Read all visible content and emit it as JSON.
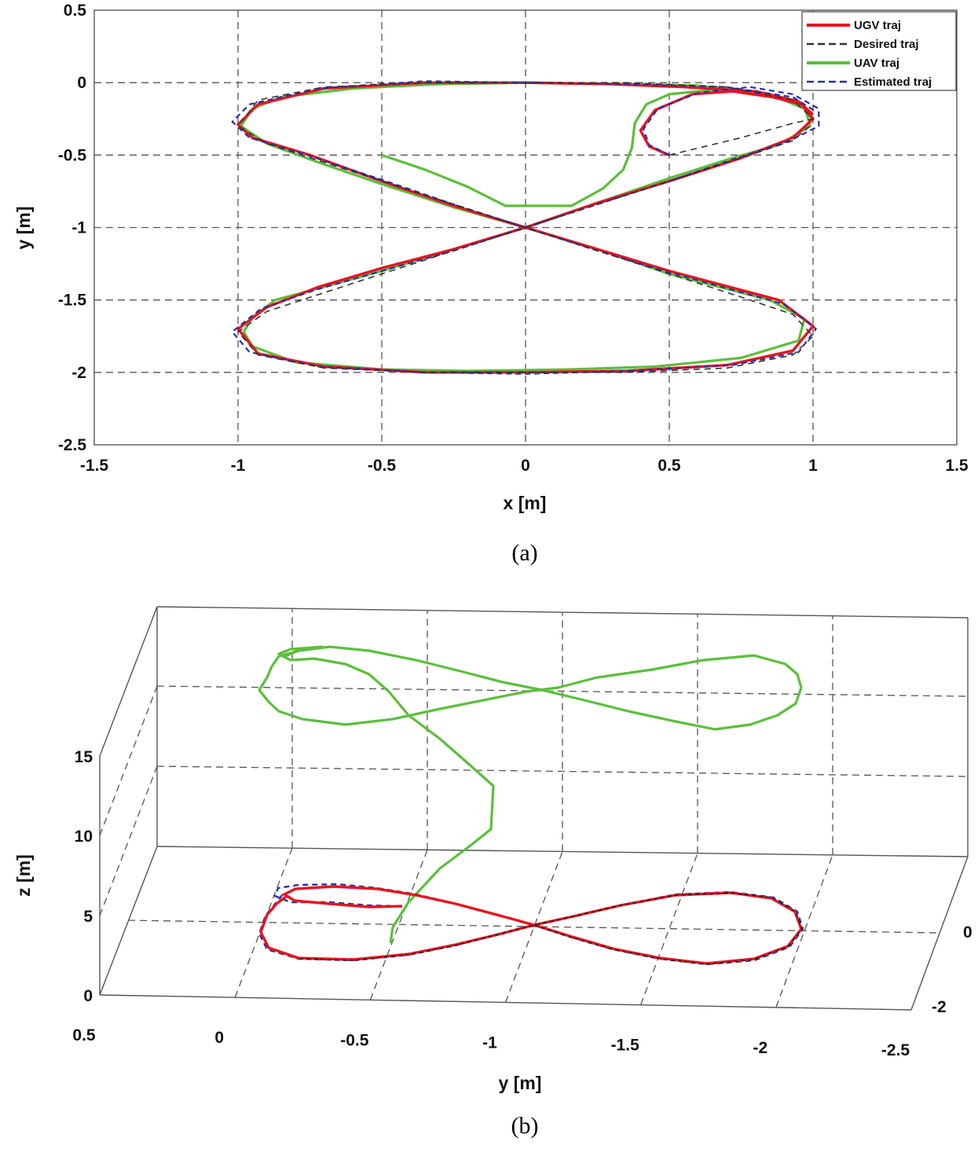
{
  "chart_data": [
    {
      "type": "line",
      "panel_label": "(a)",
      "xlabel": "x [m]",
      "ylabel": "y [m]",
      "xlim": [
        -1.5,
        1.5
      ],
      "ylim": [
        -2.5,
        0.5
      ],
      "xticks": [
        "-1.5",
        "-1",
        "-0.5",
        "0",
        "0.5",
        "1",
        "1.5"
      ],
      "yticks": [
        "0.5",
        "0",
        "-0.5",
        "-1",
        "-1.5",
        "-2",
        "-2.5"
      ],
      "grid": true,
      "legend_position": "top-right",
      "series": [
        {
          "name": "UGV traj",
          "color": "#e8141f",
          "style": "solid",
          "points": [
            [
              0.5,
              -0.5
            ],
            [
              0.43,
              -0.44
            ],
            [
              0.4,
              -0.33
            ],
            [
              0.45,
              -0.19
            ],
            [
              0.58,
              -0.08
            ],
            [
              0.72,
              -0.06
            ],
            [
              0.86,
              -0.1
            ],
            [
              0.96,
              -0.15
            ],
            [
              1.0,
              -0.25
            ],
            [
              0.93,
              -0.38
            ],
            [
              0.75,
              -0.52
            ],
            [
              0.5,
              -0.68
            ],
            [
              0.25,
              -0.83
            ],
            [
              0.0,
              -1.0
            ],
            [
              -0.25,
              -1.15
            ],
            [
              -0.5,
              -1.28
            ],
            [
              -0.72,
              -1.41
            ],
            [
              -0.9,
              -1.55
            ],
            [
              -1.0,
              -1.7
            ],
            [
              -0.93,
              -1.87
            ],
            [
              -0.7,
              -1.96
            ],
            [
              -0.35,
              -2.0
            ],
            [
              0.0,
              -2.0
            ],
            [
              0.35,
              -1.99
            ],
            [
              0.7,
              -1.95
            ],
            [
              0.93,
              -1.85
            ],
            [
              1.0,
              -1.68
            ],
            [
              0.88,
              -1.5
            ],
            [
              0.5,
              -1.3
            ],
            [
              0.25,
              -1.15
            ],
            [
              0.0,
              -1.0
            ],
            [
              -0.25,
              -0.85
            ],
            [
              -0.5,
              -0.68
            ],
            [
              -0.75,
              -0.5
            ],
            [
              -0.95,
              -0.38
            ],
            [
              -1.0,
              -0.29
            ],
            [
              -0.93,
              -0.15
            ],
            [
              -0.7,
              -0.04
            ],
            [
              -0.35,
              0.0
            ],
            [
              0.0,
              0.0
            ],
            [
              0.3,
              -0.01
            ],
            [
              0.55,
              -0.03
            ],
            [
              0.8,
              -0.06
            ],
            [
              0.95,
              -0.13
            ],
            [
              1.0,
              -0.22
            ]
          ]
        },
        {
          "name": "Desired traj",
          "color": "#333333",
          "style": "dashed",
          "points": [
            [
              0.5,
              -0.5
            ],
            [
              0.75,
              -0.38
            ],
            [
              0.93,
              -0.28
            ],
            [
              1.0,
              -0.25
            ],
            [
              0.93,
              -0.12
            ],
            [
              0.7,
              -0.03
            ],
            [
              0.35,
              0.0
            ],
            [
              0.0,
              0.0
            ],
            [
              -0.35,
              0.0
            ],
            [
              -0.7,
              -0.03
            ],
            [
              -0.93,
              -0.12
            ],
            [
              -1.0,
              -0.3
            ],
            [
              -0.9,
              -0.42
            ],
            [
              -0.7,
              -0.55
            ],
            [
              -0.5,
              -0.68
            ],
            [
              -0.25,
              -0.84
            ],
            [
              0.0,
              -1.0
            ],
            [
              0.25,
              -1.16
            ],
            [
              0.5,
              -1.32
            ],
            [
              0.75,
              -1.48
            ],
            [
              0.93,
              -1.6
            ],
            [
              1.0,
              -1.75
            ],
            [
              0.93,
              -1.88
            ],
            [
              0.7,
              -1.97
            ],
            [
              0.35,
              -2.0
            ],
            [
              0.0,
              -2.0
            ],
            [
              -0.35,
              -2.0
            ],
            [
              -0.7,
              -1.97
            ],
            [
              -0.93,
              -1.88
            ],
            [
              -1.0,
              -1.72
            ],
            [
              -0.9,
              -1.58
            ],
            [
              -0.7,
              -1.45
            ],
            [
              -0.5,
              -1.32
            ],
            [
              -0.25,
              -1.16
            ],
            [
              0.0,
              -1.0
            ],
            [
              0.25,
              -0.84
            ],
            [
              0.5,
              -0.68
            ],
            [
              0.75,
              -0.52
            ],
            [
              0.93,
              -0.4
            ],
            [
              1.0,
              -0.28
            ]
          ]
        },
        {
          "name": "UAV traj",
          "color": "#5bbf3c",
          "style": "solid",
          "points": [
            [
              -0.5,
              -0.5
            ],
            [
              -0.35,
              -0.6
            ],
            [
              -0.2,
              -0.72
            ],
            [
              -0.07,
              -0.85
            ],
            [
              0.16,
              -0.85
            ],
            [
              0.27,
              -0.73
            ],
            [
              0.34,
              -0.6
            ],
            [
              0.37,
              -0.45
            ],
            [
              0.38,
              -0.28
            ],
            [
              0.42,
              -0.15
            ],
            [
              0.5,
              -0.08
            ],
            [
              0.65,
              -0.05
            ],
            [
              0.82,
              -0.07
            ],
            [
              0.97,
              -0.16
            ],
            [
              0.99,
              -0.3
            ],
            [
              0.88,
              -0.43
            ],
            [
              0.72,
              -0.52
            ],
            [
              0.5,
              -0.66
            ],
            [
              0.25,
              -0.83
            ],
            [
              0.0,
              -1.0
            ],
            [
              -0.25,
              -1.15
            ],
            [
              -0.5,
              -1.3
            ],
            [
              -0.72,
              -1.42
            ],
            [
              -0.87,
              -1.5
            ],
            [
              -0.95,
              -1.62
            ],
            [
              -0.98,
              -1.72
            ],
            [
              -0.95,
              -1.82
            ],
            [
              -0.8,
              -1.93
            ],
            [
              -0.5,
              -1.98
            ],
            [
              -0.2,
              -1.99
            ],
            [
              0.15,
              -1.98
            ],
            [
              0.45,
              -1.96
            ],
            [
              0.75,
              -1.9
            ],
            [
              0.95,
              -1.78
            ],
            [
              0.97,
              -1.63
            ],
            [
              0.85,
              -1.5
            ],
            [
              0.5,
              -1.32
            ],
            [
              0.25,
              -1.15
            ],
            [
              0.0,
              -1.0
            ],
            [
              -0.25,
              -0.86
            ],
            [
              -0.5,
              -0.7
            ],
            [
              -0.72,
              -0.55
            ],
            [
              -0.9,
              -0.42
            ],
            [
              -0.99,
              -0.3
            ],
            [
              -0.95,
              -0.18
            ],
            [
              -0.85,
              -0.1
            ],
            [
              -0.6,
              -0.04
            ],
            [
              -0.3,
              -0.01
            ],
            [
              0.0,
              0.0
            ],
            [
              0.3,
              -0.01
            ],
            [
              0.6,
              -0.02
            ],
            [
              0.85,
              -0.08
            ],
            [
              0.97,
              -0.18
            ],
            [
              1.0,
              -0.26
            ]
          ]
        },
        {
          "name": "Estimated traj",
          "color": "#2a2fa8",
          "style": "dashed",
          "points": [
            [
              0.5,
              -0.5
            ],
            [
              0.43,
              -0.43
            ],
            [
              0.41,
              -0.32
            ],
            [
              0.46,
              -0.18
            ],
            [
              0.6,
              -0.07
            ],
            [
              0.78,
              -0.03
            ],
            [
              0.93,
              -0.08
            ],
            [
              1.02,
              -0.18
            ],
            [
              1.02,
              -0.3
            ],
            [
              0.92,
              -0.4
            ],
            [
              0.72,
              -0.53
            ],
            [
              0.5,
              -0.68
            ],
            [
              0.25,
              -0.84
            ],
            [
              0.0,
              -1.0
            ],
            [
              -0.25,
              -1.16
            ],
            [
              -0.5,
              -1.3
            ],
            [
              -0.73,
              -1.43
            ],
            [
              -0.92,
              -1.56
            ],
            [
              -1.02,
              -1.72
            ],
            [
              -0.96,
              -1.86
            ],
            [
              -0.72,
              -1.96
            ],
            [
              -0.35,
              -2.0
            ],
            [
              0.0,
              -2.01
            ],
            [
              0.35,
              -1.99
            ],
            [
              0.72,
              -1.95
            ],
            [
              0.95,
              -1.86
            ],
            [
              1.01,
              -1.7
            ],
            [
              0.9,
              -1.53
            ],
            [
              0.5,
              -1.31
            ],
            [
              0.25,
              -1.16
            ],
            [
              0.0,
              -1.0
            ],
            [
              -0.25,
              -0.84
            ],
            [
              -0.5,
              -0.67
            ],
            [
              -0.76,
              -0.5
            ],
            [
              -0.96,
              -0.38
            ],
            [
              -1.02,
              -0.27
            ],
            [
              -0.96,
              -0.15
            ],
            [
              -0.72,
              -0.04
            ],
            [
              -0.35,
              0.01
            ],
            [
              0.0,
              0.0
            ],
            [
              0.35,
              -0.01
            ],
            [
              0.7,
              -0.03
            ],
            [
              0.93,
              -0.1
            ],
            [
              1.01,
              -0.2
            ]
          ]
        }
      ]
    },
    {
      "type": "line",
      "panel_label": "(b)",
      "projection": "3d",
      "xlabel": "",
      "ylabel": "y [m]",
      "zlabel": "z [m]",
      "yticks": [
        "0.5",
        "0",
        "-0.5",
        "-1",
        "-1.5",
        "-2",
        "-2.5"
      ],
      "xticks": [
        "0",
        "-2"
      ],
      "zticks": [
        "15",
        "10",
        "5",
        "0"
      ],
      "grid": true,
      "series": [
        {
          "name": "UAV traj",
          "color": "#5bbf3c",
          "style": "solid"
        },
        {
          "name": "UGV traj",
          "color": "#e8141f",
          "style": "solid"
        },
        {
          "name": "Desired traj",
          "color": "#333333",
          "style": "dashed"
        },
        {
          "name": "Estimated traj",
          "color": "#2a2fa8",
          "style": "dashed"
        }
      ]
    }
  ]
}
